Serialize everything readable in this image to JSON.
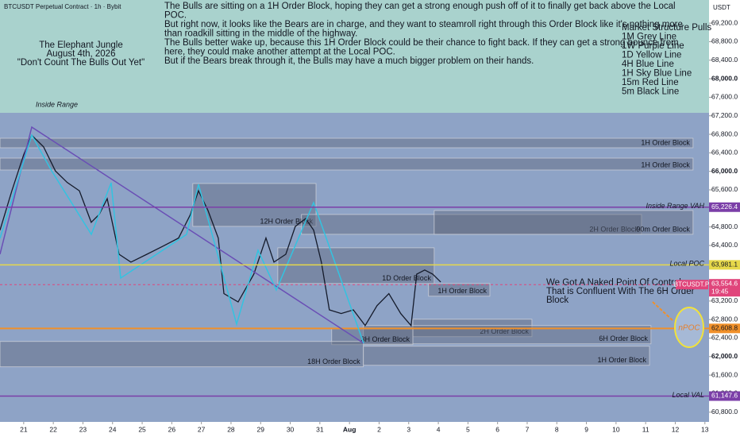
{
  "header": {
    "symbol": "BTCUSDT Perpetual Contract · 1h · Bybit",
    "currency": "USDT"
  },
  "notes": {
    "title": [
      "The Elephant Jungle",
      "August 4th, 2026",
      "\"Don't Count The Bulls Out Yet\""
    ],
    "body": [
      "The Bulls are sitting on a 1H Order Block, hoping they can get a strong enough push off of it to finally get back above the Local",
      "POC.",
      "But right now, it looks like the Bears are in charge, and they want to steamroll right through this Order Block like it's nothing more",
      "than roadkill sitting in the middle of the highway.",
      "The Bulls better wake up, because this 1H Order Block could be their chance to fight back. If they can get a strong bounce from",
      "here, they could make another attempt at the Local POC.",
      "But if the Bears break through it, the Bulls may have a much bigger problem on their hands."
    ],
    "legend": [
      "Market Structure Pulls",
      "1M Grey Line",
      "1W Purple Line",
      "1D Yellow Line",
      "4H Blue Line",
      "1H Sky Blue Line",
      "15m Red Line",
      "5m Black Line"
    ],
    "range_label": "Inside Range",
    "callout": [
      "We Got A Naked Point Of Control",
      "That is Confluent With The 6H Order",
      "Block"
    ],
    "npoc": "nPOC"
  },
  "chart_data": {
    "type": "line",
    "color": "#141a2a",
    "xlim": [
      -0.8,
      23.14
    ],
    "ylim": [
      60590,
      69700
    ],
    "xticks": [
      {
        "value": 0,
        "label": "21"
      },
      {
        "value": 1,
        "label": "22"
      },
      {
        "value": 2,
        "label": "23"
      },
      {
        "value": 3,
        "label": "24"
      },
      {
        "value": 4,
        "label": "25"
      },
      {
        "value": 5,
        "label": "26"
      },
      {
        "value": 6,
        "label": "27"
      },
      {
        "value": 7,
        "label": "28"
      },
      {
        "value": 8,
        "label": "29"
      },
      {
        "value": 9,
        "label": "30"
      },
      {
        "value": 10,
        "label": "31"
      },
      {
        "value": 11,
        "label": "Aug"
      },
      {
        "value": 12,
        "label": "2"
      },
      {
        "value": 13,
        "label": "3"
      },
      {
        "value": 14,
        "label": "4"
      },
      {
        "value": 15,
        "label": "5"
      },
      {
        "value": 16,
        "label": "6"
      },
      {
        "value": 17,
        "label": "7"
      },
      {
        "value": 18,
        "label": "8"
      },
      {
        "value": 19,
        "label": "9"
      },
      {
        "value": 20,
        "label": "10"
      },
      {
        "value": 21,
        "label": "11"
      },
      {
        "value": 22,
        "label": "12"
      },
      {
        "value": 23,
        "label": "13"
      }
    ],
    "yticks": [
      {
        "value": 60800,
        "label": "60,800.0"
      },
      {
        "value": 61200,
        "label": "61,200.0"
      },
      {
        "value": 61600,
        "label": "61,600.0"
      },
      {
        "value": 62000,
        "label": "62,000.0"
      },
      {
        "value": 62400,
        "label": "62,400.0"
      },
      {
        "value": 62800,
        "label": "62,800.0"
      },
      {
        "value": 63200,
        "label": "63,200.0"
      },
      {
        "value": 64400,
        "label": "64,400.0"
      },
      {
        "value": 64800,
        "label": "64,800.0"
      },
      {
        "value": 65600,
        "label": "65,600.0"
      },
      {
        "value": 66000,
        "label": "66,000.0"
      },
      {
        "value": 66400,
        "label": "66,400.0"
      },
      {
        "value": 66800,
        "label": "66,800.0"
      },
      {
        "value": 67200,
        "label": "67,200.0"
      },
      {
        "value": 67600,
        "label": "67,600.0"
      },
      {
        "value": 68000,
        "label": "68,000.0"
      },
      {
        "value": 68400,
        "label": "68,400.0"
      },
      {
        "value": 68800,
        "label": "68,800.0"
      },
      {
        "value": 69200,
        "label": "69,200.0"
      }
    ],
    "x": [
      -0.8,
      -0.4,
      0,
      0.27,
      0.67,
      1.07,
      1.47,
      1.88,
      2.28,
      2.55,
      2.82,
      3.22,
      3.62,
      4.16,
      4.69,
      5.23,
      5.63,
      5.9,
      6.22,
      6.57,
      6.76,
      7.24,
      7.77,
      8.18,
      8.45,
      8.85,
      9.17,
      9.52,
      9.79,
      10.05,
      10.32,
      10.72,
      11.13,
      11.53,
      11.93,
      12.33,
      12.73,
      13.08,
      13.27,
      13.54,
      13.81,
      14.08
    ],
    "values": [
      64730,
      65580,
      66360,
      66780,
      66530,
      66010,
      65760,
      65580,
      64900,
      65070,
      65410,
      64210,
      64040,
      64210,
      64380,
      64560,
      65070,
      65580,
      65160,
      64560,
      63360,
      63180,
      63780,
      64560,
      64040,
      64210,
      64810,
      64980,
      64730,
      64040,
      63010,
      62930,
      63010,
      62670,
      63100,
      63360,
      62930,
      62670,
      63780,
      63870,
      63780,
      63610
    ],
    "zones": [
      {
        "label": "1H Order Block",
        "top": 66715,
        "bottom": 66509,
        "x0": -0.8,
        "x1": 22.6
      },
      {
        "label": "1H Order Block",
        "top": 66286,
        "bottom": 66029,
        "x0": -0.8,
        "x1": 22.6
      },
      {
        "label": "12H Order Block",
        "top": 65738,
        "bottom": 64812,
        "x0": 5.71,
        "x1": 9.87
      },
      {
        "label": "2H Order Block",
        "top": 65069,
        "bottom": 64641,
        "x0": 9.38,
        "x1": 20.86
      },
      {
        "label": "90m Order Block",
        "top": 65155,
        "bottom": 64641,
        "x0": 13.86,
        "x1": 22.6
      },
      {
        "label": "1D Order Block",
        "top": 64349,
        "bottom": 63578,
        "x0": 8.58,
        "x1": 13.86
      },
      {
        "label": "1H Order Block",
        "top": 63578,
        "bottom": 63304,
        "x0": 13.67,
        "x1": 15.74
      },
      {
        "label": "2H Order Block",
        "top": 62807,
        "bottom": 62430,
        "x0": 13.14,
        "x1": 17.16
      },
      {
        "label": "6H Order Block",
        "top": 62670,
        "bottom": 62275,
        "x0": 11.47,
        "x1": 21.18
      },
      {
        "label": "3H Order Block",
        "top": 62601,
        "bottom": 62258,
        "x0": 10.4,
        "x1": 13.14
      },
      {
        "label": "18H Order Block",
        "top": 62327,
        "bottom": 61779,
        "x0": -0.8,
        "x1": 11.47
      },
      {
        "label": "1H Order Block",
        "top": 62224,
        "bottom": 61812,
        "x0": 11.47,
        "x1": 21.13
      }
    ],
    "levels": [
      {
        "name": "Inside Range VAH",
        "value": 65226.4,
        "value_label": "65,226.4",
        "color": "#7b3fa8"
      },
      {
        "name": "Local POC",
        "value": 63981.1,
        "value_label": "63,981.1",
        "color": "#e6d84a"
      },
      {
        "name": "BTCUSDT.P",
        "value": 63554.6,
        "value_label": "63,554.6",
        "sub": "19:45",
        "color": "#e0457b"
      },
      {
        "name": "Local VAL",
        "value": 61147.6,
        "value_label": "61,147.6",
        "color": "#7b3fa8"
      }
    ],
    "orange_level": {
      "value": 62608.8,
      "value_label": "62,608.8",
      "color": "#f0902a"
    }
  }
}
